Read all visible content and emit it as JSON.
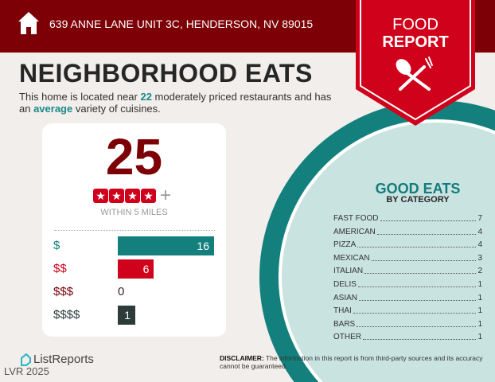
{
  "header": {
    "address": "639 ANNE LANE UNIT 3C, HENDERSON, NV 89015",
    "home_icon": "home-icon"
  },
  "ribbon": {
    "line1": "FOOD",
    "line2": "REPORT",
    "icon": "spoon-fork-icon"
  },
  "title": "NEIGHBORHOOD EATS",
  "description": {
    "pre": "This home is located near ",
    "count": "22",
    "mid": " moderately priced restaurants and has an ",
    "variety": "average",
    "post": " variety of cuisines."
  },
  "summary": {
    "total": "25",
    "rating_stars": 4,
    "plus": "+",
    "within": "WITHIN 5 MILES"
  },
  "price_levels": [
    {
      "label": "$",
      "value": "16",
      "color": "#13807d"
    },
    {
      "label": "$$",
      "value": "6",
      "color": "#d0021b"
    },
    {
      "label": "$$$",
      "value": "0",
      "color": "#7d0006"
    },
    {
      "label": "$$$$",
      "value": "1",
      "color": "#2d3b3a"
    }
  ],
  "categories": {
    "title": "GOOD EATS",
    "subtitle": "BY CATEGORY",
    "items": [
      {
        "name": "FAST FOOD",
        "count": "7"
      },
      {
        "name": "AMERICAN",
        "count": "4"
      },
      {
        "name": "PIZZA",
        "count": "4"
      },
      {
        "name": "MEXICAN",
        "count": "3"
      },
      {
        "name": "ITALIAN",
        "count": "2"
      },
      {
        "name": "DELIS",
        "count": "1"
      },
      {
        "name": "ASIAN",
        "count": "1"
      },
      {
        "name": "THAI",
        "count": "1"
      },
      {
        "name": "BARS",
        "count": "1"
      },
      {
        "name": "OTHER",
        "count": "1"
      }
    ]
  },
  "footer": {
    "logo": "ListReports",
    "watermark": "LVR 2025",
    "disclaimer_label": "DISCLAIMER:",
    "disclaimer": " The information in this report is from third-party sources and its accuracy cannot be guaranteed."
  },
  "colors": {
    "dark_red": "#7d0006",
    "red": "#d0021b",
    "teal": "#13807d",
    "light_teal": "#c9e3e1"
  }
}
